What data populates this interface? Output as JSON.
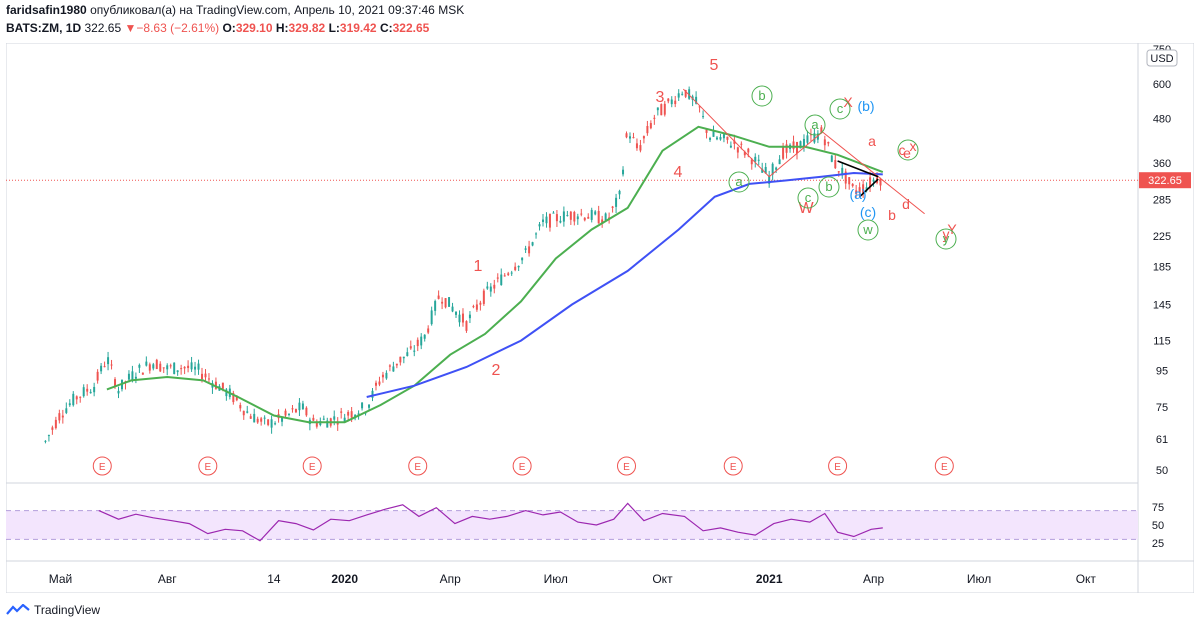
{
  "header": {
    "author": "faridsafin1980",
    "published_text": "опубликовал(а) на TradingView.com, Апрель 10, 2021 09:37:46 MSK",
    "symbol": "BATS:ZM, 1D",
    "last": "322.65",
    "change": "−8.63 (−2.61%)",
    "o_label": "O:",
    "o": "329.10",
    "h_label": "H:",
    "h": "329.82",
    "l_label": "L:",
    "l": "319.42",
    "c_label": "C:",
    "c": "322.65"
  },
  "footer": {
    "brand": "TradingView"
  },
  "colors": {
    "up": "#26a69a",
    "down": "#ef5350",
    "ma_short": "#4caf50",
    "ma_long": "#3f51f5",
    "rsi": "#9c27b0",
    "rsi_band": "#f3e5fd",
    "wave": "#ef5350",
    "circle": "#4caf50",
    "blue_label": "#2196f3"
  },
  "chart_data": [
    {
      "type": "candlestick",
      "title": "",
      "currency_label": "USD",
      "price_scale": "log",
      "y_ticks": [
        "750",
        "600",
        "480",
        "360",
        "285",
        "225",
        "185",
        "145",
        "115",
        "95",
        "75",
        "61",
        "50"
      ],
      "last_price_label": "322.65",
      "last_price": 322.65,
      "x_labels": [
        "Май",
        "Авг",
        "14",
        "2020",
        "Апр",
        "Июл",
        "Окт",
        "2021",
        "Апр",
        "Июл",
        "Окт"
      ],
      "series": [
        {
          "name": "",
          "values": [
            [
              "2019-04-18",
              60
            ],
            [
              "2019-05-01",
              72
            ],
            [
              "2019-05-15",
              80
            ],
            [
              "2019-05-30",
              86
            ],
            [
              "2019-06-10",
              103
            ],
            [
              "2019-06-20",
              84
            ],
            [
              "2019-07-05",
              94
            ],
            [
              "2019-07-20",
              100
            ],
            [
              "2019-08-01",
              96
            ],
            [
              "2019-08-15",
              97
            ],
            [
              "2019-08-28",
              95
            ],
            [
              "2019-09-10",
              88
            ],
            [
              "2019-09-25",
              81
            ],
            [
              "2019-10-10",
              72
            ],
            [
              "2019-10-25",
              67
            ],
            [
              "2019-11-10",
              70
            ],
            [
              "2019-11-25",
              75
            ],
            [
              "2019-12-05",
              68
            ],
            [
              "2019-12-20",
              69
            ],
            [
              "2020-01-05",
              72
            ],
            [
              "2020-01-20",
              75
            ],
            [
              "2020-02-01",
              90
            ],
            [
              "2020-02-15",
              100
            ],
            [
              "2020-02-28",
              107
            ],
            [
              "2020-03-10",
              118
            ],
            [
              "2020-03-23",
              155
            ],
            [
              "2020-04-05",
              140
            ],
            [
              "2020-04-15",
              128
            ],
            [
              "2020-04-28",
              150
            ],
            [
              "2020-05-10",
              165
            ],
            [
              "2020-05-25",
              185
            ],
            [
              "2020-06-05",
              200
            ],
            [
              "2020-06-20",
              245
            ],
            [
              "2020-07-05",
              255
            ],
            [
              "2020-07-20",
              260
            ],
            [
              "2020-08-05",
              255
            ],
            [
              "2020-08-15",
              250
            ],
            [
              "2020-08-25",
              290
            ],
            [
              "2020-09-01",
              450
            ],
            [
              "2020-09-10",
              390
            ],
            [
              "2020-09-25",
              490
            ],
            [
              "2020-10-05",
              520
            ],
            [
              "2020-10-19",
              580
            ],
            [
              "2020-11-01",
              520
            ],
            [
              "2020-11-10",
              430
            ],
            [
              "2020-11-20",
              420
            ],
            [
              "2020-12-01",
              410
            ],
            [
              "2020-12-15",
              380
            ],
            [
              "2021-01-01",
              330
            ],
            [
              "2021-01-12",
              385
            ],
            [
              "2021-01-25",
              400
            ],
            [
              "2021-02-05",
              420
            ],
            [
              "2021-02-16",
              440
            ],
            [
              "2021-02-26",
              360
            ],
            [
              "2021-03-05",
              340
            ],
            [
              "2021-03-15",
              300
            ],
            [
              "2021-03-25",
              310
            ],
            [
              "2021-04-05",
              330
            ],
            [
              "2021-04-09",
              322.65
            ]
          ]
        },
        {
          "name": "",
          "values": [
            [
              "2019-06-10",
              84
            ],
            [
              "2019-07-01",
              89
            ],
            [
              "2019-08-01",
              91
            ],
            [
              "2019-09-01",
              89
            ],
            [
              "2019-10-01",
              80
            ],
            [
              "2019-11-01",
              71
            ],
            [
              "2019-12-01",
              68
            ],
            [
              "2020-01-01",
              68
            ],
            [
              "2020-02-01",
              76
            ],
            [
              "2020-03-01",
              86
            ],
            [
              "2020-04-01",
              105
            ],
            [
              "2020-05-01",
              120
            ],
            [
              "2020-06-01",
              148
            ],
            [
              "2020-07-01",
              195
            ],
            [
              "2020-08-01",
              235
            ],
            [
              "2020-09-01",
              270
            ],
            [
              "2020-10-01",
              390
            ],
            [
              "2020-11-01",
              455
            ],
            [
              "2020-12-01",
              430
            ],
            [
              "2021-01-01",
              400
            ],
            [
              "2021-02-01",
              400
            ],
            [
              "2021-03-01",
              380
            ],
            [
              "2021-04-09",
              340
            ]
          ]
        },
        {
          "name": "",
          "values": [
            [
              "2020-01-20",
              80
            ],
            [
              "2020-03-01",
              86
            ],
            [
              "2020-04-15",
              97
            ],
            [
              "2020-06-01",
              115
            ],
            [
              "2020-07-15",
              145
            ],
            [
              "2020-09-01",
              180
            ],
            [
              "2020-10-15",
              235
            ],
            [
              "2020-11-15",
              290
            ],
            [
              "2020-12-15",
              315
            ],
            [
              "2021-01-15",
              322
            ],
            [
              "2021-02-15",
              330
            ],
            [
              "2021-03-15",
              338
            ],
            [
              "2021-04-09",
              335
            ]
          ]
        }
      ],
      "wave_labels": [
        "1",
        "2",
        "3",
        "4",
        "5",
        "W",
        "X",
        "(b)",
        "a",
        "c",
        "x",
        "e",
        "(a)",
        "(c)",
        "b",
        "d",
        "y",
        "Y"
      ],
      "circled_labels": [
        "b",
        "a",
        "c",
        "a",
        "c",
        "b",
        "w",
        "y"
      ],
      "earnings_marker": "E",
      "earnings_count": 9
    },
    {
      "type": "line",
      "title": "",
      "y_ticks": [
        "75",
        "50",
        "25"
      ],
      "band": [
        30,
        70
      ],
      "series": [
        {
          "name": "",
          "values": [
            [
              "2019-06-03",
              70
            ],
            [
              "2019-06-20",
              58
            ],
            [
              "2019-07-05",
              65
            ],
            [
              "2019-07-20",
              60
            ],
            [
              "2019-08-05",
              56
            ],
            [
              "2019-08-20",
              52
            ],
            [
              "2019-09-05",
              38
            ],
            [
              "2019-09-20",
              44
            ],
            [
              "2019-10-05",
              42
            ],
            [
              "2019-10-20",
              28
            ],
            [
              "2019-11-05",
              56
            ],
            [
              "2019-11-20",
              52
            ],
            [
              "2019-12-05",
              43
            ],
            [
              "2019-12-20",
              58
            ],
            [
              "2020-01-05",
              56
            ],
            [
              "2020-01-20",
              64
            ],
            [
              "2020-02-05",
              72
            ],
            [
              "2020-02-20",
              78
            ],
            [
              "2020-03-05",
              62
            ],
            [
              "2020-03-20",
              74
            ],
            [
              "2020-04-05",
              52
            ],
            [
              "2020-04-20",
              62
            ],
            [
              "2020-05-05",
              58
            ],
            [
              "2020-05-20",
              62
            ],
            [
              "2020-06-05",
              70
            ],
            [
              "2020-06-20",
              64
            ],
            [
              "2020-07-05",
              68
            ],
            [
              "2020-07-20",
              54
            ],
            [
              "2020-08-05",
              50
            ],
            [
              "2020-08-20",
              58
            ],
            [
              "2020-09-01",
              80
            ],
            [
              "2020-09-15",
              56
            ],
            [
              "2020-10-01",
              66
            ],
            [
              "2020-10-20",
              62
            ],
            [
              "2020-11-05",
              42
            ],
            [
              "2020-11-20",
              46
            ],
            [
              "2020-12-05",
              40
            ],
            [
              "2020-12-20",
              36
            ],
            [
              "2021-01-05",
              52
            ],
            [
              "2021-01-20",
              58
            ],
            [
              "2021-02-05",
              54
            ],
            [
              "2021-02-18",
              66
            ],
            [
              "2021-03-01",
              40
            ],
            [
              "2021-03-15",
              34
            ],
            [
              "2021-03-30",
              44
            ],
            [
              "2021-04-09",
              46
            ]
          ]
        }
      ]
    }
  ]
}
